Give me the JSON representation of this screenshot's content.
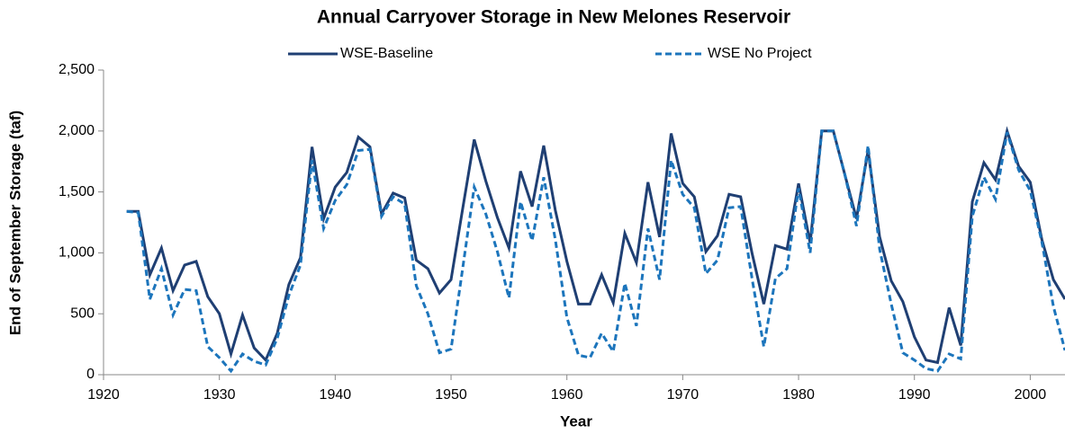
{
  "chart_data": {
    "type": "line",
    "title": "Annual Carryover Storage in New Melones Reservoir",
    "x_label": "Year",
    "y_label": "End of September Storage (taf)",
    "x": [
      1922,
      1923,
      1924,
      1925,
      1926,
      1927,
      1928,
      1929,
      1930,
      1931,
      1932,
      1933,
      1934,
      1935,
      1936,
      1937,
      1938,
      1939,
      1940,
      1941,
      1942,
      1943,
      1944,
      1945,
      1946,
      1947,
      1948,
      1949,
      1950,
      1951,
      1952,
      1953,
      1954,
      1955,
      1956,
      1957,
      1958,
      1959,
      1960,
      1961,
      1962,
      1963,
      1964,
      1965,
      1966,
      1967,
      1968,
      1969,
      1970,
      1971,
      1972,
      1973,
      1974,
      1975,
      1976,
      1977,
      1978,
      1979,
      1980,
      1981,
      1982,
      1983,
      1984,
      1985,
      1986,
      1987,
      1988,
      1989,
      1990,
      1991,
      1992,
      1993,
      1994,
      1995,
      1996,
      1997,
      1998,
      1999,
      2000,
      2001,
      2002,
      2003
    ],
    "series": [
      {
        "name": "WSE-Baseline",
        "color": "#1f3f73",
        "dash": false,
        "values": [
          1340,
          1340,
          820,
          1040,
          690,
          900,
          930,
          640,
          500,
          170,
          490,
          220,
          120,
          340,
          740,
          960,
          1870,
          1280,
          1540,
          1660,
          1950,
          1870,
          1320,
          1490,
          1450,
          940,
          870,
          670,
          780,
          1360,
          1930,
          1590,
          1290,
          1040,
          1670,
          1380,
          1880,
          1350,
          930,
          580,
          580,
          820,
          590,
          1160,
          920,
          1580,
          1130,
          1980,
          1570,
          1460,
          1010,
          1140,
          1480,
          1460,
          990,
          580,
          1060,
          1030,
          1570,
          1080,
          2000,
          2000,
          1640,
          1280,
          1840,
          1130,
          770,
          600,
          310,
          120,
          100,
          550,
          240,
          1420,
          1740,
          1600,
          2000,
          1710,
          1580,
          1110,
          780,
          620
        ]
      },
      {
        "name": "WSE No Project",
        "color": "#1c75bc",
        "dash": true,
        "values": [
          1340,
          1330,
          620,
          870,
          490,
          700,
          690,
          230,
          140,
          30,
          170,
          110,
          80,
          300,
          650,
          900,
          1760,
          1200,
          1430,
          1560,
          1840,
          1850,
          1300,
          1460,
          1400,
          730,
          500,
          180,
          210,
          870,
          1540,
          1320,
          1010,
          630,
          1420,
          1100,
          1620,
          1110,
          470,
          160,
          140,
          340,
          190,
          750,
          400,
          1200,
          780,
          1760,
          1480,
          1370,
          830,
          940,
          1370,
          1380,
          780,
          230,
          790,
          870,
          1530,
          1000,
          2000,
          2000,
          1640,
          1220,
          1880,
          1030,
          580,
          180,
          120,
          50,
          30,
          170,
          130,
          1300,
          1620,
          1440,
          1990,
          1680,
          1510,
          1090,
          560,
          200
        ]
      }
    ],
    "xlim": [
      1920,
      2003
    ],
    "ylim": [
      0,
      2500
    ],
    "xticks": [
      1920,
      1930,
      1940,
      1950,
      1960,
      1970,
      1980,
      1990,
      2000
    ],
    "yticks": [
      0,
      500,
      {
        "value": 1000,
        "label": "1,000"
      },
      {
        "value": 1500,
        "label": "1,500"
      },
      {
        "value": 2000,
        "label": "2,000"
      },
      {
        "value": 2500,
        "label": "2,500"
      }
    ]
  }
}
